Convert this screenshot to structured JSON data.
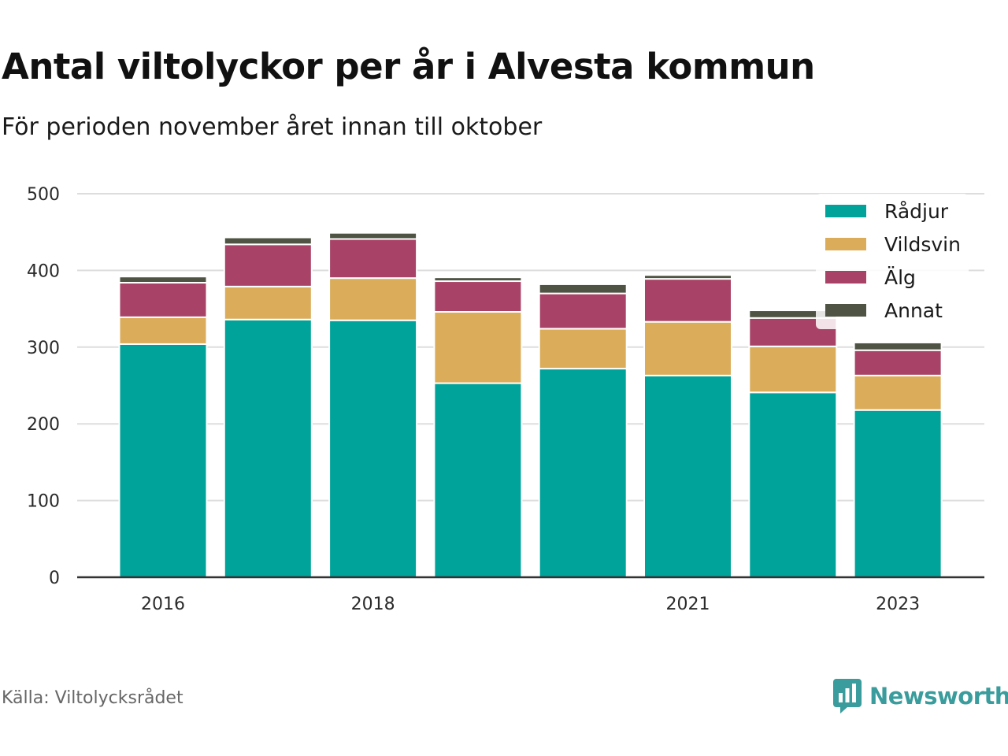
{
  "title": "Antal viltolyckor per år i Alvesta kommun",
  "subtitle": "För perioden november året innan till oktober",
  "source": "Källa: Viltolycksrådet",
  "brand": {
    "name": "Newsworthy",
    "icon": "bar-chart-bubble-icon",
    "color": "#3a9c9c"
  },
  "chart_data": {
    "type": "bar",
    "stacked": true,
    "categories": [
      "2016",
      "2017",
      "2018",
      "2019",
      "2020",
      "2021",
      "2022",
      "2023"
    ],
    "x_tick_labels": [
      "2016",
      "",
      "2018",
      "",
      "",
      "2021",
      "",
      "2023"
    ],
    "series": [
      {
        "name": "Rådjur",
        "color": "#00a39a",
        "values": [
          304,
          336,
          335,
          253,
          272,
          263,
          241,
          218
        ]
      },
      {
        "name": "Vildsvin",
        "color": "#dbad5a",
        "values": [
          35,
          43,
          55,
          93,
          52,
          70,
          60,
          45
        ]
      },
      {
        "name": "Älg",
        "color": "#a84266",
        "values": [
          45,
          55,
          51,
          40,
          46,
          56,
          37,
          33
        ]
      },
      {
        "name": "Annat",
        "color": "#4e5343",
        "values": [
          8,
          9,
          8,
          5,
          12,
          5,
          10,
          10
        ]
      }
    ],
    "ylim": [
      0,
      500
    ],
    "y_ticks": [
      0,
      100,
      200,
      300,
      400,
      500
    ],
    "grid": true,
    "legend_position": "top-right",
    "xlabel": "",
    "ylabel": ""
  }
}
